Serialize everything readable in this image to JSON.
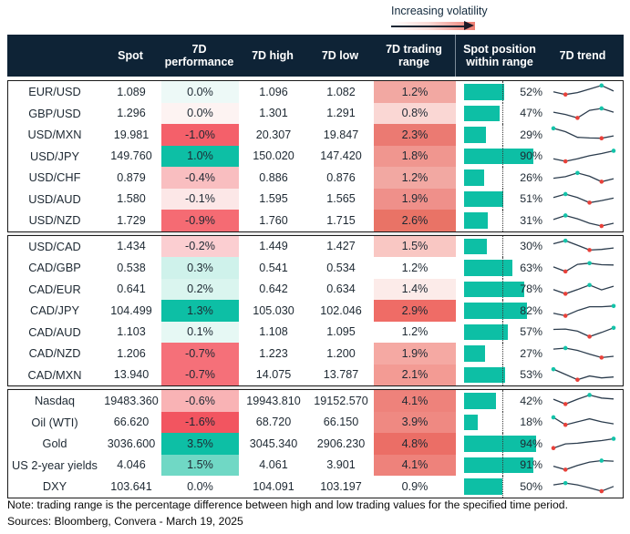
{
  "legend": {
    "label": "Increasing volatility"
  },
  "header": {
    "columns": [
      "",
      "Spot",
      "7D performance",
      "7D high",
      "7D low",
      "7D trading range",
      "Spot position within range",
      "7D trend"
    ]
  },
  "colors": {
    "header_bg": "#0e2336",
    "teal_strong": "#0dbfa5",
    "red_strong": "#f4606a",
    "bar": "#0dbfa5",
    "sparkline_line": "#2b3c4d",
    "sparkline_max_dot": "#14c3a9",
    "sparkline_min_dot": "#e8413a",
    "block_border": "#1a1a1a"
  },
  "chart_data": {
    "type": "table",
    "columns": [
      "Spot",
      "7D performance",
      "7D high",
      "7D low",
      "7D trading range",
      "Spot position within range",
      "7D trend"
    ],
    "groups": [
      {
        "rows": [
          {
            "label": "EUR/USD",
            "spot": "1.089",
            "perf": "0.0%",
            "perf_bg": "#edf9f7",
            "high": "1.096",
            "low": "1.082",
            "range": "1.2%",
            "range_bg": "#f2a8a2",
            "position_pct": 52,
            "position_label": "52%",
            "trend": [
              0.5,
              0.32,
              0.45,
              0.68,
              0.92,
              0.55
            ]
          },
          {
            "label": "GBP/USD",
            "spot": "1.296",
            "perf": "0.0%",
            "perf_bg": "#fdf3f2",
            "high": "1.301",
            "low": "1.291",
            "range": "0.8%",
            "range_bg": "#fad7d4",
            "position_pct": 47,
            "position_label": "47%",
            "trend": [
              0.6,
              0.45,
              0.22,
              0.72,
              0.85,
              0.6
            ]
          },
          {
            "label": "USD/MXN",
            "spot": "19.981",
            "perf": "-1.0%",
            "perf_bg": "#f4606a",
            "high": "20.307",
            "low": "19.847",
            "range": "2.3%",
            "range_bg": "#eb7a72",
            "position_pct": 29,
            "position_label": "29%",
            "trend": [
              0.92,
              0.7,
              0.32,
              0.28,
              0.26,
              0.42
            ]
          },
          {
            "label": "USD/JPY",
            "spot": "149.760",
            "perf": "1.0%",
            "perf_bg": "#0dbfa5",
            "high": "150.020",
            "low": "147.420",
            "range": "1.8%",
            "range_bg": "#f0968f",
            "position_pct": 90,
            "position_label": "90%",
            "trend": [
              0.35,
              0.18,
              0.35,
              0.55,
              0.7,
              0.88
            ]
          },
          {
            "label": "USD/CHF",
            "spot": "0.879",
            "perf": "-0.4%",
            "perf_bg": "#f9bec0",
            "high": "0.886",
            "low": "0.876",
            "range": "1.2%",
            "range_bg": "#f2a8a2",
            "position_pct": 26,
            "position_label": "26%",
            "trend": [
              0.45,
              0.55,
              0.8,
              0.58,
              0.22,
              0.42
            ]
          },
          {
            "label": "USD/AUD",
            "spot": "1.580",
            "perf": "-0.1%",
            "perf_bg": "#fce7e7",
            "high": "1.595",
            "low": "1.565",
            "range": "1.9%",
            "range_bg": "#ef908a",
            "position_pct": 51,
            "position_label": "51%",
            "trend": [
              0.62,
              0.85,
              0.62,
              0.28,
              0.42,
              0.58
            ]
          },
          {
            "label": "USD/NZD",
            "spot": "1.729",
            "perf": "-0.9%",
            "perf_bg": "#f56b73",
            "high": "1.760",
            "low": "1.715",
            "range": "2.6%",
            "range_bg": "#e97366",
            "position_pct": 31,
            "position_label": "31%",
            "trend": [
              0.55,
              0.82,
              0.6,
              0.3,
              0.12,
              0.3
            ]
          }
        ]
      },
      {
        "rows": [
          {
            "label": "USD/CAD",
            "spot": "1.434",
            "perf": "-0.2%",
            "perf_bg": "#fbced1",
            "high": "1.449",
            "low": "1.427",
            "range": "1.5%",
            "range_bg": "#f9c7c3",
            "position_pct": 30,
            "position_label": "30%",
            "trend": [
              0.7,
              0.9,
              0.6,
              0.28,
              0.32,
              0.42
            ]
          },
          {
            "label": "CAD/GBP",
            "spot": "0.538",
            "perf": "0.3%",
            "perf_bg": "#cff2eb",
            "high": "0.541",
            "low": "0.534",
            "range": "1.2%",
            "range_bg": "#ffffff",
            "position_pct": 63,
            "position_label": "63%",
            "trend": [
              0.55,
              0.25,
              0.72,
              0.8,
              0.7,
              0.68
            ]
          },
          {
            "label": "CAD/EUR",
            "spot": "0.641",
            "perf": "0.2%",
            "perf_bg": "#daf5ef",
            "high": "0.642",
            "low": "0.634",
            "range": "1.4%",
            "range_bg": "#fcebe9",
            "position_pct": 78,
            "position_label": "78%",
            "trend": [
              0.5,
              0.22,
              0.5,
              0.8,
              0.48,
              0.72
            ]
          },
          {
            "label": "CAD/JPY",
            "spot": "104.499",
            "perf": "1.3%",
            "perf_bg": "#0dbfa5",
            "high": "105.030",
            "low": "102.046",
            "range": "2.9%",
            "range_bg": "#ef6c66",
            "position_pct": 82,
            "position_label": "82%",
            "trend": [
              0.32,
              0.15,
              0.5,
              0.75,
              0.75,
              0.8
            ]
          },
          {
            "label": "CAD/AUD",
            "spot": "1.103",
            "perf": "0.1%",
            "perf_bg": "#e6f8f4",
            "high": "1.108",
            "low": "1.095",
            "range": "1.2%",
            "range_bg": "#ffffff",
            "position_pct": 57,
            "position_label": "57%",
            "trend": [
              0.7,
              0.72,
              0.58,
              0.22,
              0.5,
              0.8
            ]
          },
          {
            "label": "CAD/NZD",
            "spot": "1.206",
            "perf": "-0.7%",
            "perf_bg": "#f57079",
            "high": "1.223",
            "low": "1.200",
            "range": "1.9%",
            "range_bg": "#f5a9a3",
            "position_pct": 27,
            "position_label": "27%",
            "trend": [
              0.78,
              0.85,
              0.7,
              0.45,
              0.22,
              0.3
            ]
          },
          {
            "label": "CAD/MXN",
            "spot": "13.940",
            "perf": "-0.7%",
            "perf_bg": "#f57079",
            "high": "14.075",
            "low": "13.787",
            "range": "2.1%",
            "range_bg": "#f39b94",
            "position_pct": 53,
            "position_label": "53%",
            "trend": [
              0.9,
              0.55,
              0.2,
              0.45,
              0.32,
              0.38
            ]
          }
        ]
      },
      {
        "rows": [
          {
            "label": "Nasdaq",
            "spot": "19483.360",
            "perf": "-0.6%",
            "perf_bg": "#f9b3b5",
            "high": "19943.810",
            "low": "19152.570",
            "range": "4.1%",
            "range_bg": "#ee827b",
            "position_pct": 42,
            "position_label": "42%",
            "trend": [
              0.6,
              0.28,
              0.6,
              0.88,
              0.68,
              0.62
            ]
          },
          {
            "label": "Oil (WTI)",
            "spot": "66.620",
            "perf": "-1.6%",
            "perf_bg": "#f25560",
            "high": "68.720",
            "low": "66.150",
            "range": "3.9%",
            "range_bg": "#ef8982",
            "position_pct": 18,
            "position_label": "18%",
            "trend": [
              0.85,
              0.35,
              0.55,
              0.75,
              0.55,
              0.42
            ]
          },
          {
            "label": "Gold",
            "spot": "3036.600",
            "perf": "3.5%",
            "perf_bg": "#0dbfa5",
            "high": "3045.340",
            "low": "2906.230",
            "range": "4.8%",
            "range_bg": "#eb6e66",
            "position_pct": 94,
            "position_label": "94%",
            "trend": [
              0.2,
              0.48,
              0.52,
              0.62,
              0.7,
              0.82
            ]
          },
          {
            "label": "US 2-year yields",
            "spot": "4.046",
            "perf": "1.5%",
            "perf_bg": "#70d8c5",
            "high": "4.061",
            "low": "3.901",
            "range": "4.1%",
            "range_bg": "#ee827b",
            "position_pct": 91,
            "position_label": "91%",
            "trend": [
              0.45,
              0.22,
              0.5,
              0.72,
              0.82,
              0.78
            ]
          },
          {
            "label": "DXY",
            "spot": "103.641",
            "perf": "0.0%",
            "perf_bg": "#ffffff",
            "high": "104.091",
            "low": "103.197",
            "range": "0.9%",
            "range_bg": "#ffffff",
            "position_pct": 50,
            "position_label": "50%",
            "trend": [
              0.6,
              0.72,
              0.6,
              0.4,
              0.18,
              0.5
            ]
          }
        ]
      }
    ]
  },
  "footer": {
    "note": "Note: trading range is the percentage difference between high and low trading values for the specified time period.",
    "sources": "Sources: Bloomberg, Convera - March 19, 2025"
  }
}
